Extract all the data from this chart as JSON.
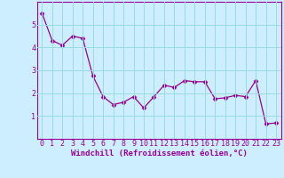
{
  "x": [
    0,
    1,
    2,
    3,
    4,
    5,
    6,
    7,
    8,
    9,
    10,
    11,
    12,
    13,
    14,
    15,
    16,
    17,
    18,
    19,
    20,
    21,
    22,
    23
  ],
  "y": [
    5.5,
    4.3,
    4.1,
    4.5,
    4.4,
    2.75,
    1.85,
    1.5,
    1.6,
    1.85,
    1.35,
    1.85,
    2.35,
    2.25,
    2.55,
    2.5,
    2.5,
    1.75,
    1.8,
    1.9,
    1.85,
    2.55,
    0.65,
    0.7
  ],
  "line_color": "#990099",
  "marker": "D",
  "markersize": 2.5,
  "linewidth": 0.9,
  "bg_color": "#cceeff",
  "grid_color": "#99dddd",
  "xlabel": "Windchill (Refroidissement éolien,°C)",
  "xlabel_fontsize": 6.5,
  "tick_fontsize": 6.0,
  "ylim": [
    0,
    6
  ],
  "yticks": [
    1,
    2,
    3,
    4,
    5
  ],
  "xticks": [
    0,
    1,
    2,
    3,
    4,
    5,
    6,
    7,
    8,
    9,
    10,
    11,
    12,
    13,
    14,
    15,
    16,
    17,
    18,
    19,
    20,
    21,
    22,
    23
  ]
}
